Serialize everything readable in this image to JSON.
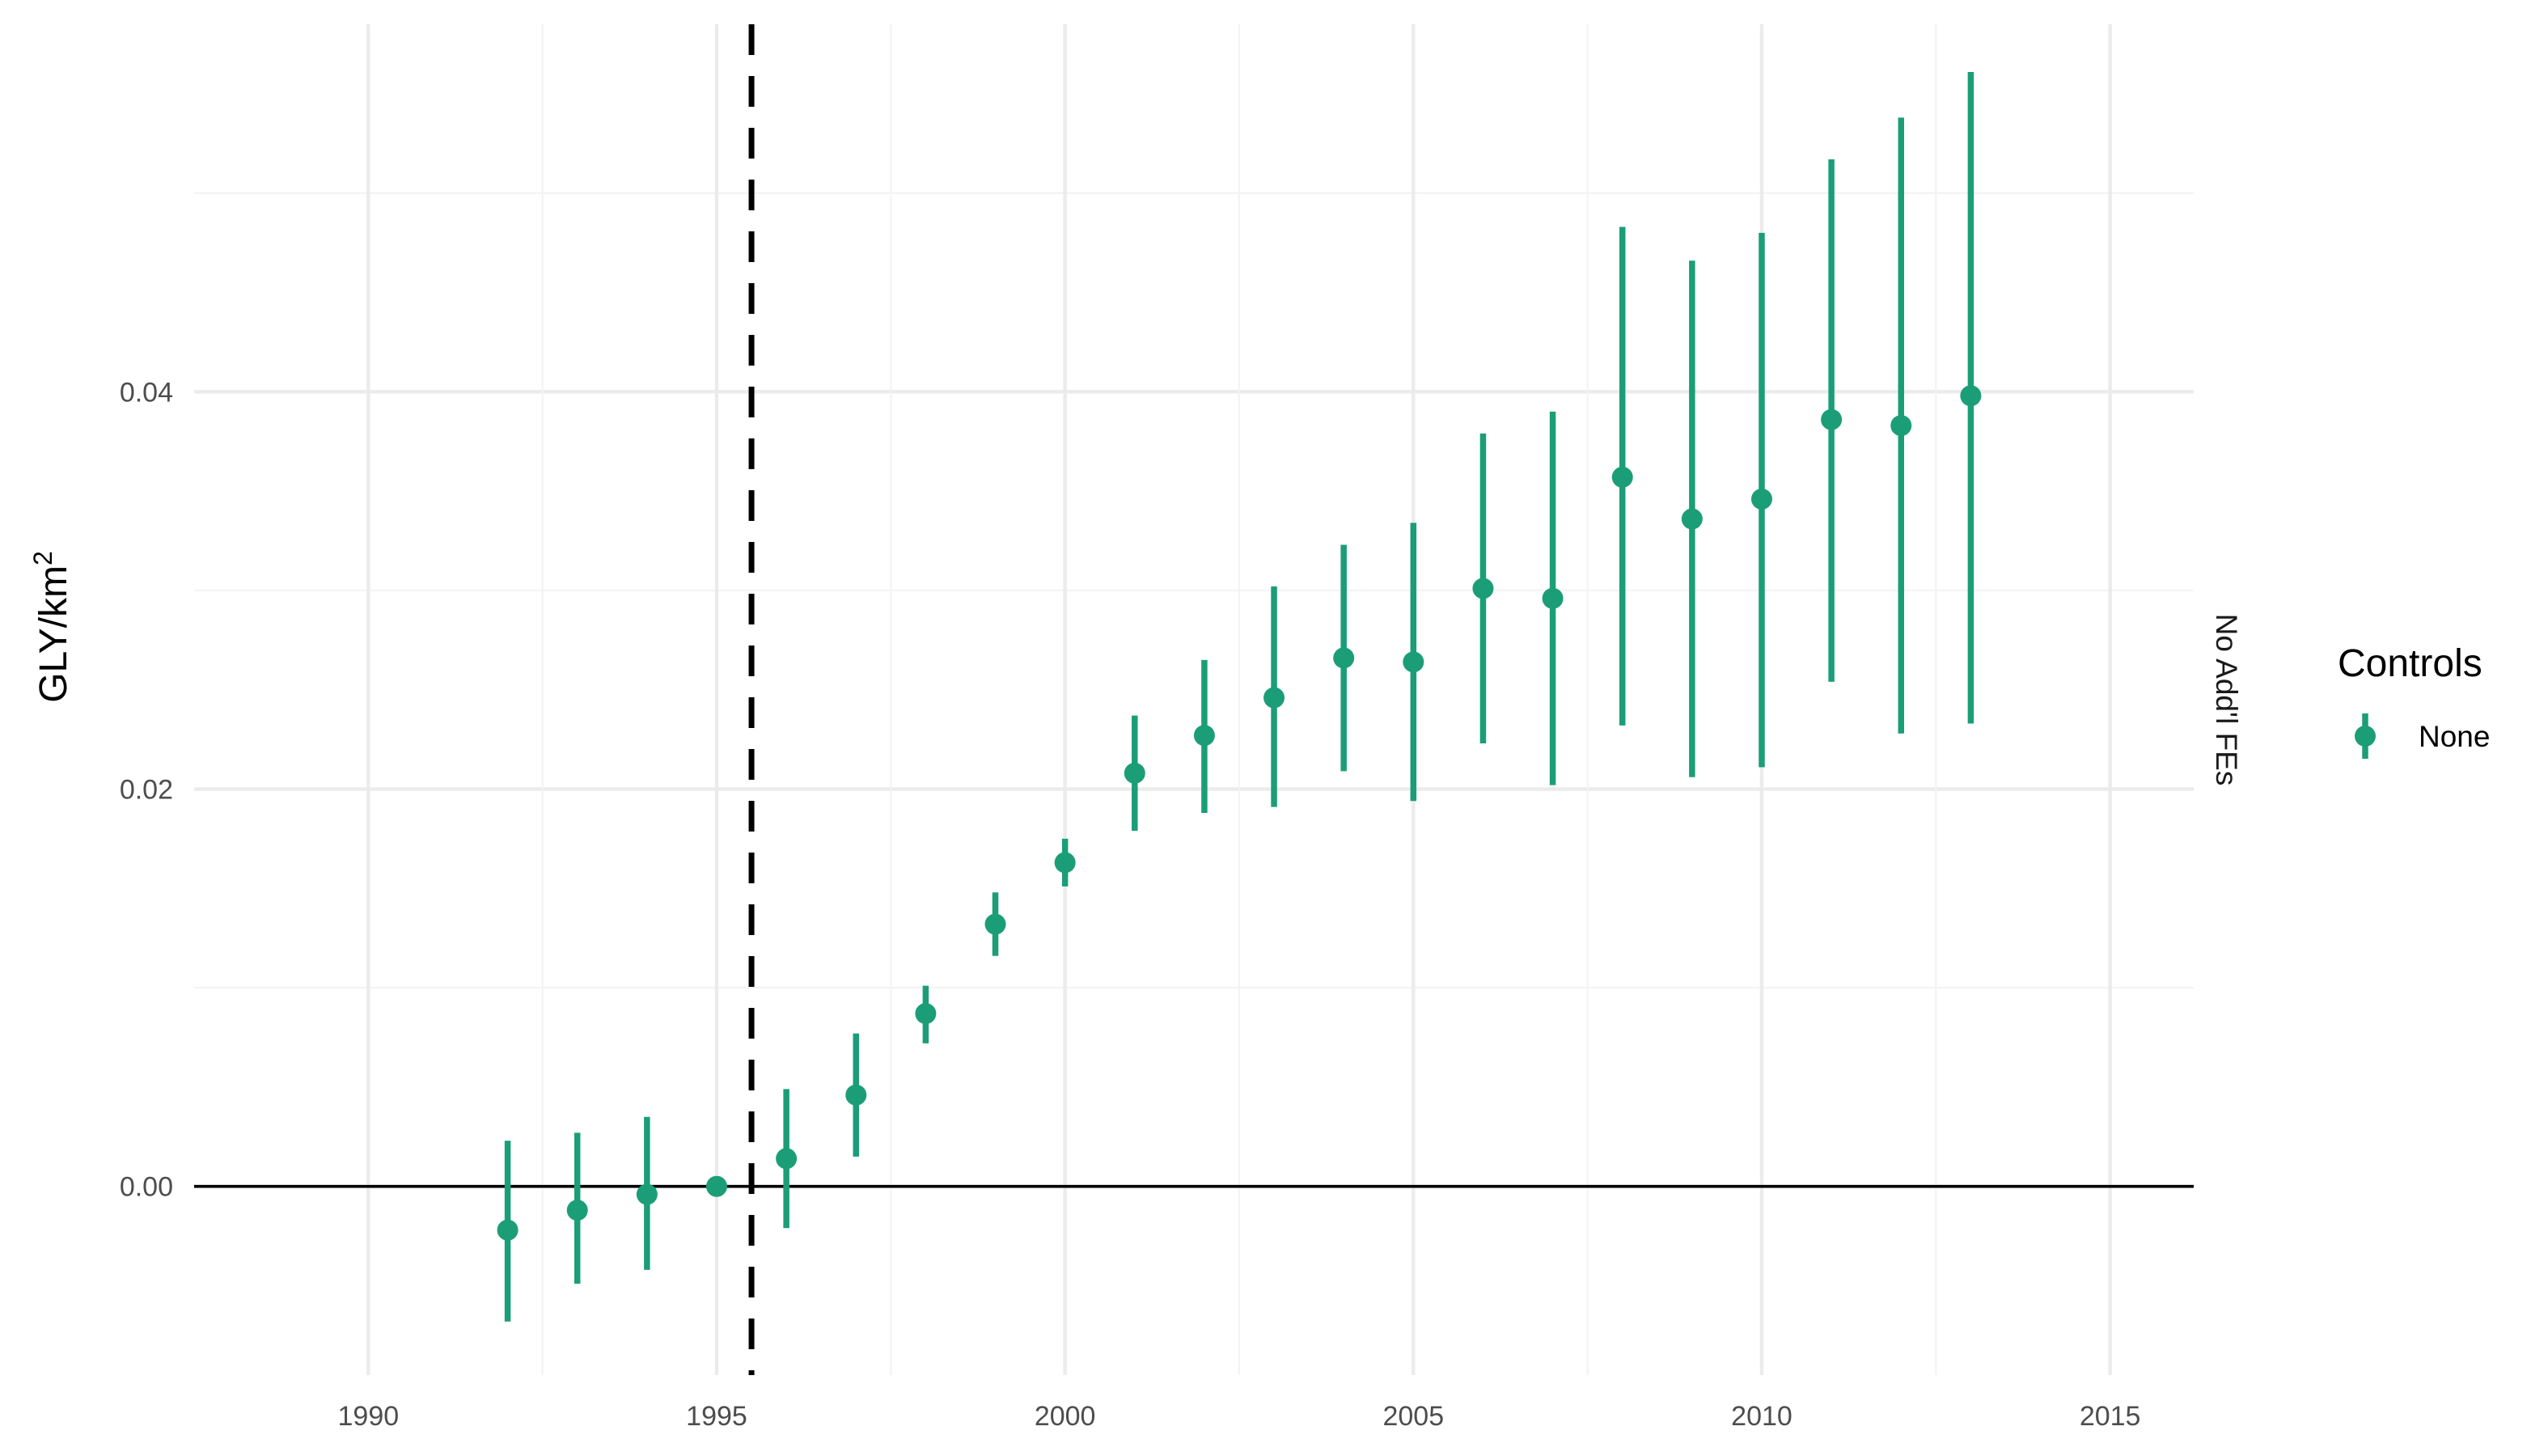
{
  "chart_data": {
    "type": "scatter",
    "subtype": "point-range (estimate with confidence interval)",
    "title": "",
    "xlabel": "",
    "ylabel_base": "GLY/km",
    "ylabel_superscript": "2",
    "xlim": [
      1987.5,
      2016.2
    ],
    "ylim": [
      -0.0095,
      0.0585
    ],
    "x_ticks": [
      1990,
      1995,
      2000,
      2005,
      2010,
      2015
    ],
    "x_tick_labels": [
      "1990",
      "1995",
      "2000",
      "2005",
      "2010",
      "2015"
    ],
    "y_ticks": [
      0.0,
      0.02,
      0.04
    ],
    "y_tick_labels": [
      "0.00",
      "0.02",
      "0.04"
    ],
    "grid": true,
    "reference_lines": {
      "horizontal_solid_y": 0.0,
      "vertical_dashed_x": 1995.5
    },
    "facet_strip_label": "No Add'l FEs",
    "legend": {
      "title": "Controls",
      "position": "right",
      "entries": [
        "None"
      ]
    },
    "series": [
      {
        "name": "None",
        "color": "#1b9e77",
        "x": [
          1992,
          1993,
          1994,
          1995,
          1996,
          1997,
          1998,
          1999,
          2000,
          2001,
          2002,
          2003,
          2004,
          2005,
          2006,
          2007,
          2008,
          2009,
          2010,
          2011,
          2012,
          2013
        ],
        "y": [
          -0.0022,
          -0.0012,
          -0.0004,
          0.0,
          0.0014,
          0.0046,
          0.0087,
          0.0132,
          0.0163,
          0.0208,
          0.0227,
          0.0246,
          0.0266,
          0.0264,
          0.0301,
          0.0296,
          0.0357,
          0.0336,
          0.0346,
          0.0386,
          0.0383,
          0.0398
        ],
        "lower": [
          -0.0068,
          -0.0049,
          -0.0042,
          0.0,
          -0.0021,
          0.0015,
          0.0072,
          0.0116,
          0.0151,
          0.0179,
          0.0188,
          0.0191,
          0.0209,
          0.0194,
          0.0223,
          0.0202,
          0.0232,
          0.0206,
          0.0211,
          0.0254,
          0.0228,
          0.0233
        ],
        "upper": [
          0.0023,
          0.0027,
          0.0035,
          0.0,
          0.0049,
          0.0077,
          0.0101,
          0.0148,
          0.0175,
          0.0237,
          0.0265,
          0.0302,
          0.0323,
          0.0334,
          0.0379,
          0.039,
          0.0483,
          0.0466,
          0.048,
          0.0517,
          0.0538,
          0.0561
        ]
      }
    ]
  }
}
